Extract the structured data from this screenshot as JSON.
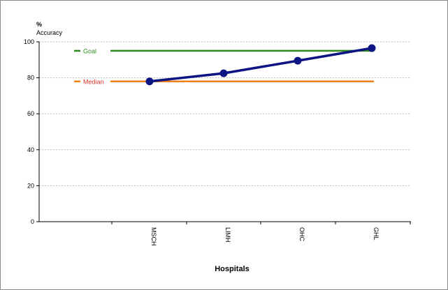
{
  "chart_data": {
    "type": "line",
    "categories": [
      "MSCH",
      "LIMH",
      "OHC",
      "GHL"
    ],
    "series": [
      {
        "values": [
          78,
          82.5,
          89.5,
          96.5
        ],
        "color": "#0d1585"
      }
    ],
    "reference_lines": [
      {
        "name": "Goal",
        "value": 95,
        "color": "#2f8a1e",
        "label_color": "#2f8a1e"
      },
      {
        "name": "Median",
        "value": 78,
        "color": "#f07f18",
        "label_color": "#d9352b"
      }
    ],
    "ylabel_symbol": "%",
    "ylabel": "Accuracy",
    "xlabel": "Hospitals",
    "ylim": [
      0,
      100
    ],
    "yticks": [
      0,
      20,
      40,
      60,
      80,
      100
    ],
    "grid": true,
    "legend": "inline-left"
  }
}
